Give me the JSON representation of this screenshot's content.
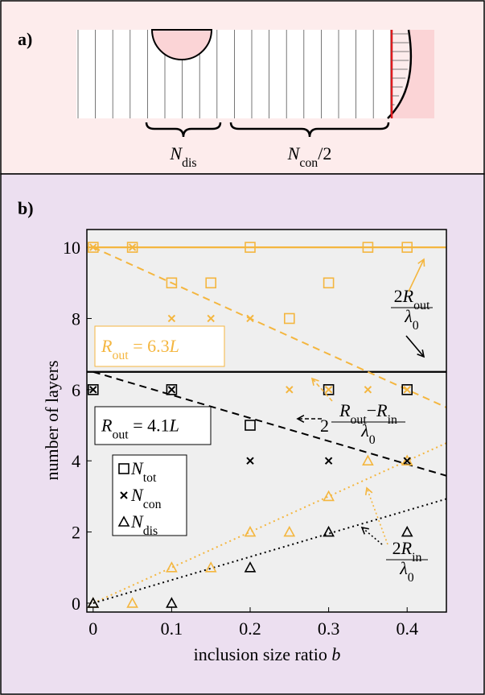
{
  "panel_a": {
    "label": "a)",
    "brace_labels": [
      [
        {
          "text": "N",
          "style": "italic"
        },
        {
          "text": "dis",
          "style": "sub"
        }
      ],
      [
        {
          "text": "N",
          "style": "italic"
        },
        {
          "text": "con",
          "style": "sub"
        },
        {
          "text": "/2",
          "style": "normal"
        }
      ]
    ]
  },
  "chart_data": {
    "type": "scatter",
    "panel_label": "b)",
    "x_label": [
      {
        "text": "inclusion size ratio ",
        "style": "normal"
      },
      {
        "text": "b",
        "style": "italic"
      }
    ],
    "y_label": "number of layers",
    "xlim": [
      -0.008,
      0.45
    ],
    "ylim": [
      -0.25,
      10.5
    ],
    "xticks": [
      0,
      0.1,
      0.2,
      0.3,
      0.4
    ],
    "yticks": [
      0,
      2,
      4,
      6,
      8,
      10
    ],
    "series": [
      {
        "color": "#f4b63f",
        "marker": "square",
        "x": [
          0,
          0.05,
          0.1,
          0.15,
          0.2,
          0.25,
          0.3,
          0.35,
          0.4
        ],
        "values": [
          10,
          10,
          9,
          9,
          10,
          8,
          9,
          10,
          10
        ]
      },
      {
        "color": "#f4b63f",
        "marker": "cross",
        "x": [
          0,
          0.05,
          0.1,
          0.15,
          0.2,
          0.25,
          0.3,
          0.35,
          0.4
        ],
        "values": [
          10,
          10,
          8,
          8,
          8,
          6,
          6,
          6,
          6
        ]
      },
      {
        "color": "#f4b63f",
        "marker": "triangle",
        "x": [
          0,
          0.05,
          0.1,
          0.15,
          0.2,
          0.25,
          0.3,
          0.35,
          0.4
        ],
        "values": [
          0,
          0,
          1,
          1,
          2,
          2,
          3,
          4,
          4
        ]
      },
      {
        "color": "#000000",
        "marker": "square",
        "x": [
          0,
          0.1,
          0.2,
          0.3,
          0.4
        ],
        "values": [
          6,
          6,
          5,
          6,
          6
        ]
      },
      {
        "color": "#000000",
        "marker": "cross",
        "x": [
          0,
          0.1,
          0.2,
          0.3,
          0.4
        ],
        "values": [
          6,
          6,
          4,
          4,
          4
        ]
      },
      {
        "color": "#000000",
        "marker": "triangle",
        "x": [
          0,
          0.1,
          0.2,
          0.3,
          0.4
        ],
        "values": [
          0,
          0,
          1,
          2,
          2
        ]
      }
    ],
    "lines": [
      {
        "color": "#f4b63f",
        "dash": "solid",
        "x": [
          -0.008,
          0.45
        ],
        "values": [
          10,
          10
        ]
      },
      {
        "color": "#000000",
        "dash": "solid",
        "x": [
          -0.008,
          0.45
        ],
        "values": [
          6.5,
          6.5
        ]
      },
      {
        "color": "#f4b63f",
        "dash": "dashed",
        "x": [
          0,
          0.45
        ],
        "values": [
          10,
          5.5
        ]
      },
      {
        "color": "#000000",
        "dash": "dashed",
        "x": [
          0,
          0.45
        ],
        "values": [
          6.5,
          3.58
        ]
      },
      {
        "color": "#f4b63f",
        "dash": "dotted",
        "x": [
          0,
          0.45
        ],
        "values": [
          0,
          4.5
        ]
      },
      {
        "color": "#000000",
        "dash": "dotted",
        "x": [
          0,
          0.45
        ],
        "values": [
          0,
          2.93
        ]
      }
    ],
    "legend": [
      {
        "marker": "square",
        "label": [
          {
            "text": "N",
            "style": "italic"
          },
          {
            "text": "tot",
            "style": "sub"
          }
        ]
      },
      {
        "marker": "cross",
        "label": [
          {
            "text": "N",
            "style": "italic"
          },
          {
            "text": "con",
            "style": "sub"
          }
        ]
      },
      {
        "marker": "triangle",
        "label": [
          {
            "text": "N",
            "style": "italic"
          },
          {
            "text": "dis",
            "style": "sub"
          }
        ]
      }
    ],
    "boxes": [
      {
        "color": "#f4b63f",
        "label": [
          {
            "text": "R",
            "style": "italic"
          },
          {
            "text": "out",
            "style": "sub"
          },
          {
            "text": " = 6.3",
            "style": "normal"
          },
          {
            "text": "L",
            "style": "italic"
          }
        ]
      },
      {
        "color": "#000000",
        "label": [
          {
            "text": "R",
            "style": "italic"
          },
          {
            "text": "out",
            "style": "sub"
          },
          {
            "text": " = 4.1",
            "style": "normal"
          },
          {
            "text": "L",
            "style": "italic"
          }
        ]
      }
    ],
    "annotations": [
      {
        "prefix": "",
        "numerator": [
          {
            "text": "2",
            "style": "normal"
          },
          {
            "text": "R",
            "style": "italic"
          },
          {
            "text": "out",
            "style": "sub"
          }
        ],
        "denominator": [
          {
            "text": "λ",
            "style": "italic"
          },
          {
            "text": "0",
            "style": "sub"
          }
        ]
      },
      {
        "prefix": "2",
        "numerator": [
          {
            "text": "R",
            "style": "italic"
          },
          {
            "text": "out",
            "style": "sub"
          },
          {
            "text": "−",
            "style": "normal"
          },
          {
            "text": "R",
            "style": "italic"
          },
          {
            "text": "in",
            "style": "sub"
          }
        ],
        "denominator": [
          {
            "text": "λ",
            "style": "italic"
          },
          {
            "text": "0",
            "style": "sub"
          }
        ]
      },
      {
        "prefix": "",
        "numerator": [
          {
            "text": "2",
            "style": "normal"
          },
          {
            "text": "R",
            "style": "italic"
          },
          {
            "text": "in",
            "style": "sub"
          }
        ],
        "denominator": [
          {
            "text": "λ",
            "style": "italic"
          },
          {
            "text": "0",
            "style": "sub"
          }
        ]
      }
    ]
  }
}
